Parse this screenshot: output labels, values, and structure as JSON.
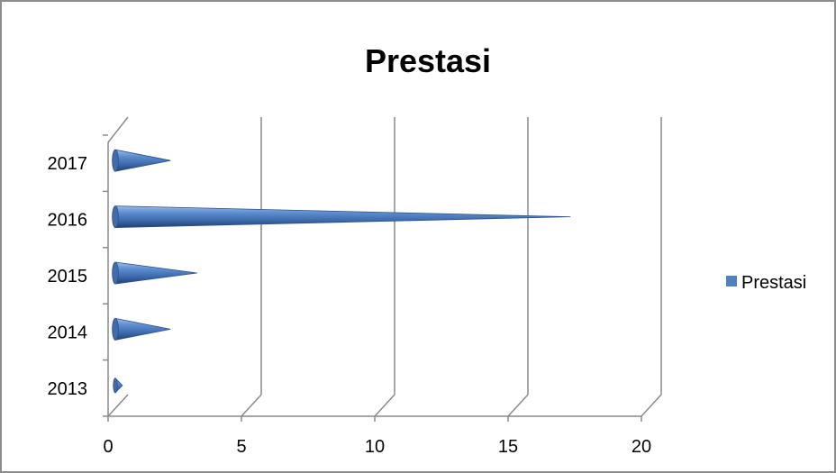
{
  "chart_data": {
    "type": "bar",
    "orientation": "horizontal",
    "bar_shape": "cone",
    "three_d": true,
    "title": "Prestasi",
    "categories": [
      "2013",
      "2014",
      "2015",
      "2016",
      "2017"
    ],
    "series": [
      {
        "name": "Prestasi",
        "values": [
          0.2,
          2,
          3,
          17,
          2
        ],
        "color": "#4f81bd"
      }
    ],
    "xlim": [
      0,
      20
    ],
    "x_ticks": [
      "0",
      "5",
      "10",
      "15",
      "20"
    ],
    "grid": true,
    "legend": {
      "position": "right"
    }
  }
}
